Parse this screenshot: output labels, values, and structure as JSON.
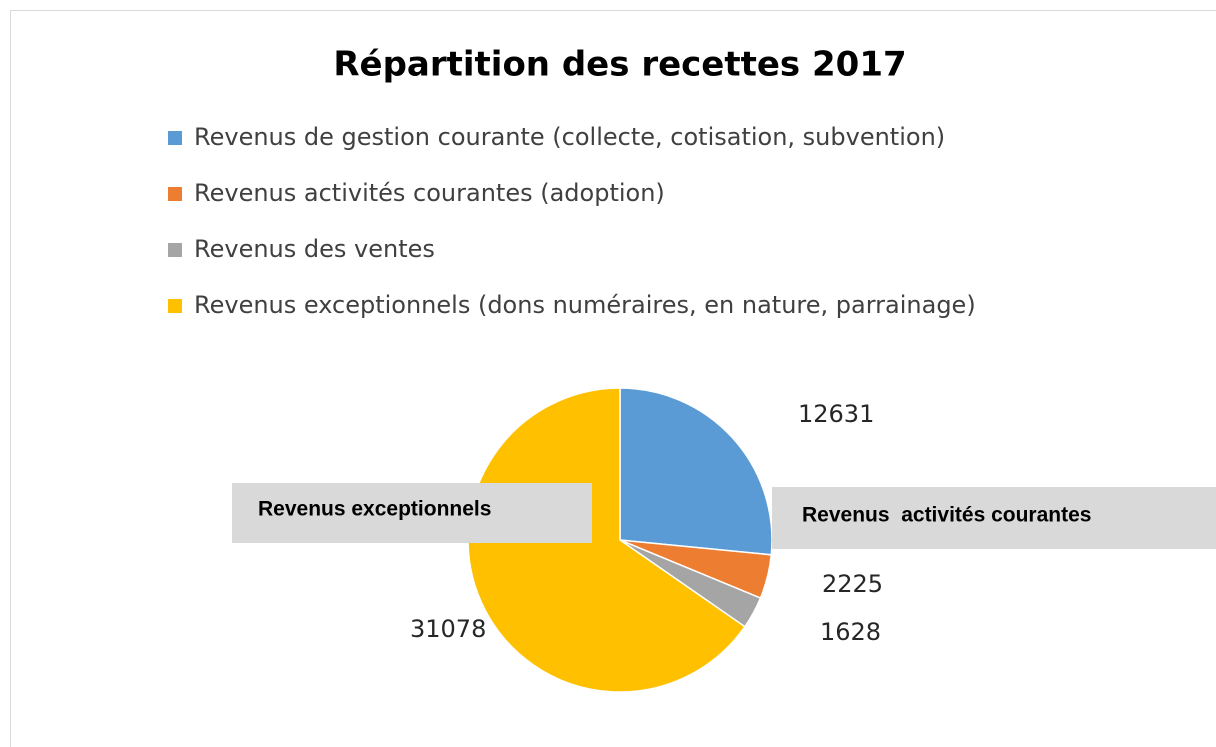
{
  "chart_data": {
    "type": "pie",
    "title": "Répartition des recettes 2017",
    "categories": [
      "Revenus de gestion courante (collecte, cotisation, subvention)",
      "Revenus activités courantes (adoption)",
      "Revenus des ventes",
      "Revenus exceptionnels (dons numéraires, en nature, parrainage)"
    ],
    "values": [
      12631,
      2225,
      1628,
      31078
    ],
    "colors": [
      "#5b9bd5",
      "#ed7d31",
      "#a5a5a5",
      "#ffc000"
    ],
    "annotations": [
      "Revenus exceptionnels",
      "Revenus  activités courantes"
    ],
    "legend": "top"
  }
}
